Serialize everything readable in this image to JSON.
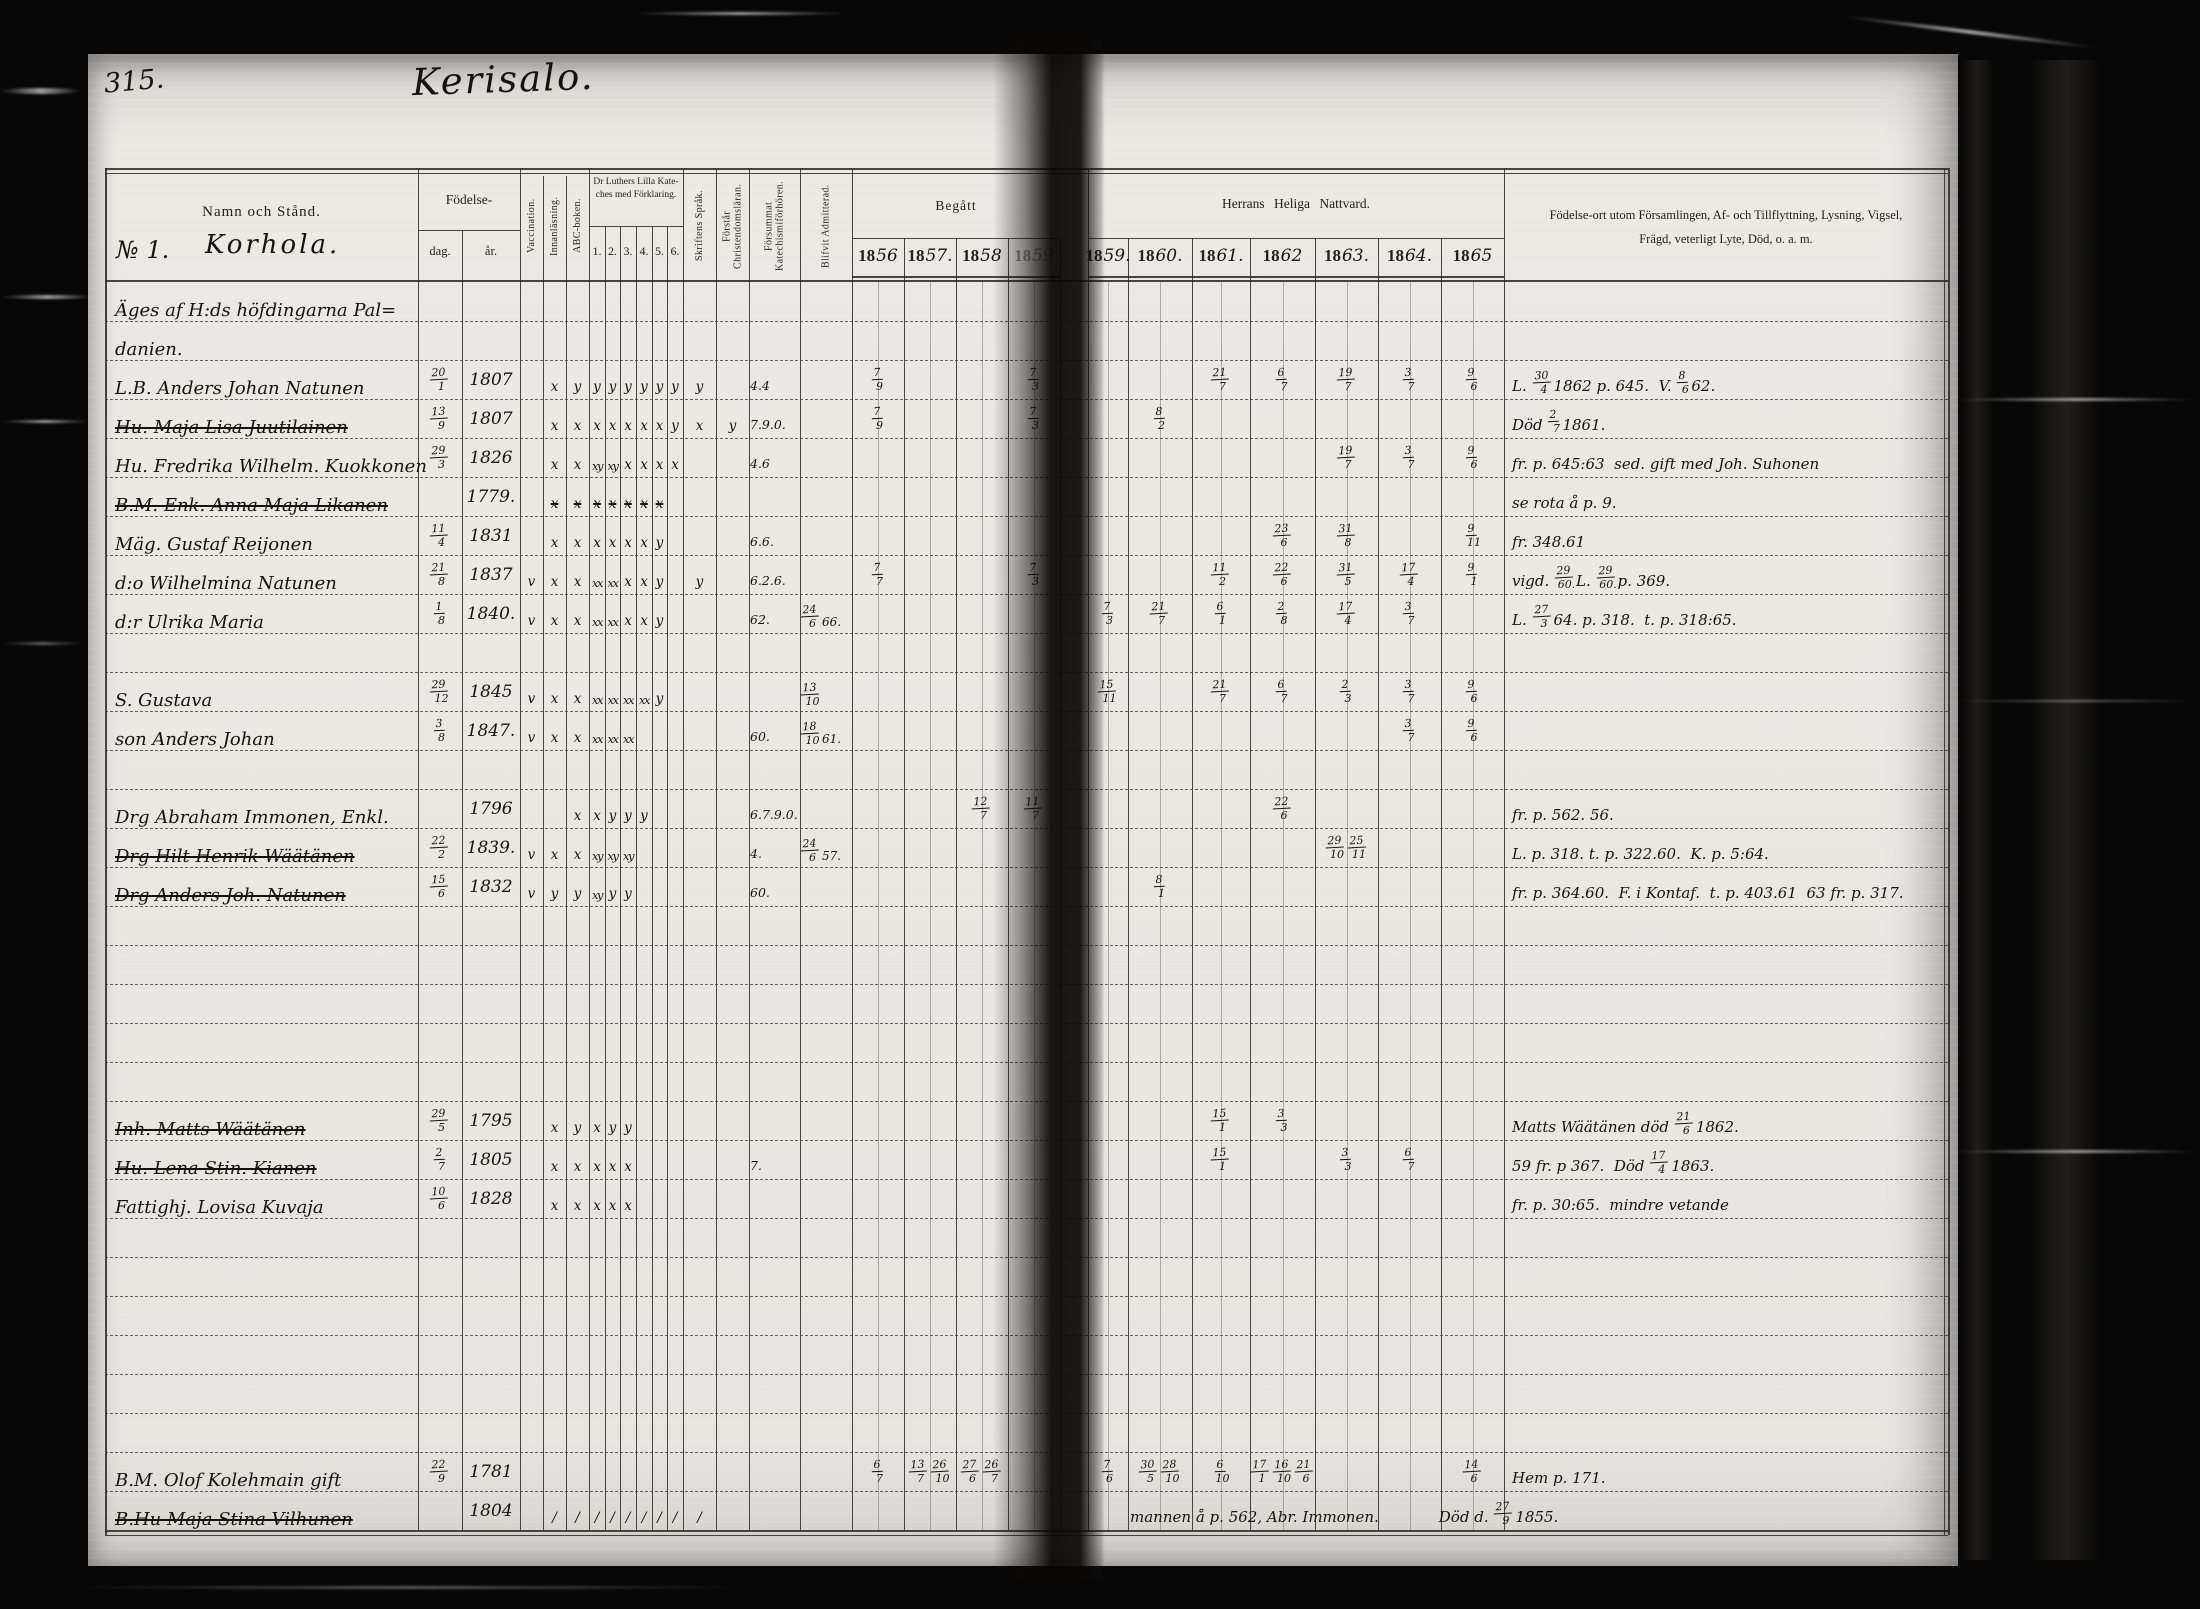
{
  "page": {
    "number": "315.",
    "title": "Kerisalo."
  },
  "header": {
    "name_col": "Namn och Stånd.",
    "village_no": "№ 1.",
    "village": "Korhola.",
    "birth": "Födelse-",
    "birth_day": "dag.",
    "birth_year": "år.",
    "catechism_line1": "Dr Luthers Lilla Kate-",
    "catechism_line2": "ches med Förklaring.",
    "catechism_nums": [
      "1.",
      "2.",
      "3.",
      "4.",
      "5.",
      "6."
    ],
    "vertical_cols": [
      "Vaccination.",
      "Innanläsning.",
      "ABC-boken.",
      "Skriftens Språk.",
      "Förstår Christendomsläran.",
      "Försummat Katechismiförhören.",
      "Blifvit Admitterad."
    ],
    "begatt": "Begått",
    "nattvard": "Herrans Heliga Nattvard.",
    "left_years": [
      "1856",
      "1857.",
      "1858",
      "1859"
    ],
    "right_years": [
      "1859.",
      "1860.",
      "1861.",
      "1862",
      "1863.",
      "1864.",
      "1865"
    ],
    "notes_header_line1": "Födelse-ort utom Församlingen, Af- och Tillflyttning, Lysning, Vigsel,",
    "notes_header_line2": "Frägd, veterligt Lyte, Död, o. a. m."
  },
  "rows": [
    {
      "name": "Äges af H:ds höfdingarna Pal="
    },
    {
      "name": "danien."
    },
    {
      "name": "L.B. Anders Johan Natunen",
      "dag": "20/1",
      "ar": "1807",
      "marks": [
        "",
        "x",
        "y",
        "y",
        "y",
        "y",
        "y",
        "y",
        "y",
        "y",
        ""
      ],
      "na": "4.4",
      "y": {
        "1856": "7/9",
        "1859a": "7/3",
        "1861": "21/7",
        "1862": "6/7",
        "1863": "19/7",
        "1864": "3/7",
        "1865": "9/6"
      },
      "note": "L. 30/4 1862 p. 645.  V. 8/6 62."
    },
    {
      "name": "Hu. Maja Lisa Juutilainen",
      "struck": true,
      "dag": "13/9",
      "ar": "1807",
      "marks": [
        "",
        "x",
        "x",
        "x",
        "x",
        "x",
        "x",
        "x",
        "y",
        "x",
        "y"
      ],
      "na": "7.9.0.",
      "y": {
        "1856": "7/9",
        "1859a": "7/3",
        "1860": "8/2"
      },
      "note": "Död 2/7 1861."
    },
    {
      "name": "Hu. Fredrika Wilhelm. Kuokkonen",
      "dag": "29/3",
      "ar": "1826",
      "marks": [
        "",
        "x",
        "x",
        "xy",
        "xy",
        "x",
        "x",
        "x",
        "x",
        "",
        ""
      ],
      "na": "4.6",
      "y": {
        "1863": "19/7",
        "1864": "3/7",
        "1865": "9/6"
      },
      "note": "fr. p. 645:63  sed. gift med Joh. Suhonen"
    },
    {
      "name": "B.M. Enk. Anna Maja Likanen",
      "struck": true,
      "ar": "1779.",
      "marks": [
        "",
        "x",
        "x",
        "x",
        "x",
        "x",
        "x",
        "x",
        "",
        "",
        ""
      ],
      "marks_struck": true,
      "note": "se rota å p. 9."
    },
    {
      "name": "Mäg. Gustaf Reijonen",
      "dag": "11/4",
      "ar": "1831",
      "marks": [
        "",
        "x",
        "x",
        "x",
        "x",
        "x",
        "x",
        "y",
        "",
        "",
        ""
      ],
      "na": "6.6.",
      "y": {
        "1862": "23/6",
        "1863": "31/8",
        "1865": "9/11"
      },
      "note": "fr. 348.61"
    },
    {
      "name": "d:o Wilhelmina Natunen",
      "dag": "21/8",
      "ar": "1837",
      "marks": [
        "v",
        "x",
        "x",
        "xx",
        "xx",
        "x",
        "x",
        "y",
        "",
        "y",
        ""
      ],
      "na": "6.2.6.",
      "y": {
        "1856": "7/7",
        "1859a": "7/3",
        "1861": "11/2",
        "1862": "22/6",
        "1863": "31/5",
        "1864": "17/4",
        "1865": "9/1"
      },
      "note": "vigd. 29/60.  L. 29/60. p. 369."
    },
    {
      "name": "d:r Ulrika Maria",
      "dag": "1/8",
      "ar": "1840.",
      "marks": [
        "v",
        "x",
        "x",
        "xx",
        "xx",
        "x",
        "x",
        "y",
        "",
        "",
        ""
      ],
      "na": "62.",
      "nb": "24/6 66.",
      "y": {
        "1859": "7/3",
        "1860": "21/7",
        "1861": "6/1",
        "1862": "2/8",
        "1863": "17/4",
        "1864": "3/7"
      },
      "note": "L. 27/3 64. p. 318.  t. p. 318:65."
    },
    {},
    {
      "name": "S. Gustava",
      "dag": "29/12",
      "ar": "1845",
      "marks": [
        "v",
        "x",
        "x",
        "xx",
        "xx",
        "xx",
        "xx",
        "y",
        "",
        "",
        ""
      ],
      "nb": "13/10",
      "y": {
        "1859": "15/11",
        "1861": "21/7",
        "1862": "6/7",
        "1863": "2/3",
        "1864": "3/7",
        "1865": "9/6"
      }
    },
    {
      "name": "son Anders Johan",
      "dag": "3/8",
      "ar": "1847.",
      "marks": [
        "v",
        "x",
        "x",
        "xx",
        "xx",
        "xx",
        "",
        "",
        "",
        "",
        ""
      ],
      "na": "60.",
      "nb": "18/10 61.",
      "y": {
        "1864": "3/7",
        "1865": "9/6"
      }
    },
    {},
    {
      "name": "Drg Abraham Immonen, Enkl.",
      "ar": "1796",
      "marks": [
        "",
        "",
        "x",
        "x",
        "y",
        "y",
        "y",
        "",
        "",
        "",
        ""
      ],
      "na": "6.7.9.0.",
      "y": {
        "1858": "12/7",
        "1859a": "11/7",
        "1862": "22/6"
      },
      "note": "fr. p. 562. 56."
    },
    {
      "name": "Drg Hilt Henrik Wäätänen",
      "struck": true,
      "dag": "22/2",
      "ar": "1839.",
      "marks": [
        "v",
        "x",
        "x",
        "xy",
        "xy",
        "xy",
        "",
        "",
        "",
        "",
        ""
      ],
      "na": "4.",
      "nb": "24/6 57.",
      "y": {
        "1863": "29/10 25/11"
      },
      "note": "L. p. 318. t. p. 322.60.  K. p. 5:64."
    },
    {
      "name": "Drg Anders Joh. Natunen",
      "struck": true,
      "dag": "15/6",
      "ar": "1832",
      "marks": [
        "v",
        "y",
        "y",
        "xy",
        "y",
        "y",
        "",
        "",
        "",
        "",
        ""
      ],
      "na": "60.",
      "y": {
        "1860": "8/1"
      },
      "note": "fr. p. 364.60.  F. i Kontaf.  t. p. 403.61  63 fr. p. 317."
    },
    {},
    {},
    {},
    {},
    {},
    {
      "name": "Inh. Matts Wäätänen",
      "struck": true,
      "dag": "29/5",
      "ar": "1795",
      "marks": [
        "",
        "x",
        "y",
        "x",
        "y",
        "y",
        "",
        "",
        "",
        "",
        ""
      ],
      "y": {
        "1861": "15/1",
        "1862": "3/3"
      },
      "note": "Matts Wäätänen död 21/6 1862."
    },
    {
      "name": "Hu. Lena Stin. Kianen",
      "struck": true,
      "dag": "2/7",
      "ar": "1805",
      "marks": [
        "",
        "x",
        "x",
        "x",
        "x",
        "x",
        "",
        "",
        "",
        "",
        ""
      ],
      "na": "7.",
      "y": {
        "1861": "15/1",
        "1863": "3/3",
        "1864": "6/7"
      },
      "note": "59 fr. p 367.  Död 17/4 1863."
    },
    {
      "name": "Fattighj. Lovisa Kuvaja",
      "dag": "10/6",
      "ar": "1828",
      "marks": [
        "",
        "x",
        "x",
        "x",
        "x",
        "x",
        "",
        "",
        "",
        "",
        ""
      ],
      "note": "fr. p. 30:65.  mindre vetande"
    },
    {},
    {},
    {},
    {},
    {},
    {},
    {
      "name": "B.M. Olof Kolehmain  gift",
      "dag": "22/9",
      "ar": "1781",
      "y": {
        "1856": "6/7",
        "1857": "13/7 26/10",
        "1858": "27/6 26/7",
        "1859": "7/6",
        "1860": "30/5 28/10",
        "1861": "6/10",
        "1862": "17/1 16/10 21/6",
        "1865": "14/6"
      },
      "note": "Hem p. 171."
    },
    {
      "name": "B.Hu Maja Stina Vilhunen",
      "struck": true,
      "ar": "1804",
      "marks": [
        "",
        "/",
        "/",
        "/",
        "/",
        "/",
        "/",
        "/",
        "/",
        "/",
        ""
      ],
      "note": "mannen å p. 562, Abr. Immonen.    Död d. 27/9 1855.",
      "note_wide": true
    }
  ]
}
